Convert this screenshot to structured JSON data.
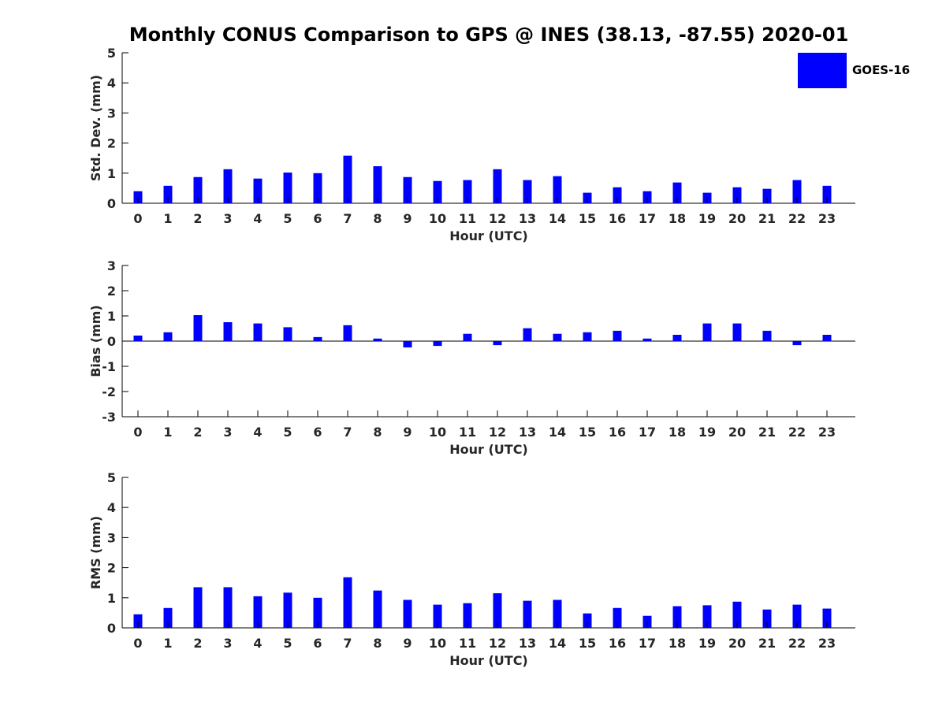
{
  "title": "Monthly CONUS Comparison to GPS @ INES (38.13, -87.55) 2020-01",
  "colors": {
    "bar": "#0000FF",
    "axis": "#000000",
    "text": "#262626"
  },
  "legend": {
    "position": "top-right",
    "label": "GOES-16"
  },
  "chart_data": [
    {
      "type": "bar",
      "series_name": "GOES-16",
      "categories": [
        "0",
        "1",
        "2",
        "3",
        "4",
        "5",
        "6",
        "7",
        "8",
        "9",
        "10",
        "11",
        "12",
        "13",
        "14",
        "15",
        "16",
        "17",
        "18",
        "19",
        "20",
        "21",
        "22",
        "23"
      ],
      "values": [
        0.4,
        0.58,
        0.87,
        1.13,
        0.82,
        1.02,
        1.0,
        1.58,
        1.23,
        0.87,
        0.74,
        0.77,
        1.13,
        0.77,
        0.9,
        0.35,
        0.53,
        0.4,
        0.69,
        0.35,
        0.53,
        0.48,
        0.77,
        0.58
      ],
      "xlabel": "Hour (UTC)",
      "ylabel": "Std. Dev. (mm)",
      "ylim": [
        0,
        5
      ],
      "yticks": [
        "0",
        "1",
        "2",
        "3",
        "4",
        "5"
      ],
      "grid": false
    },
    {
      "type": "bar",
      "series_name": "GOES-16",
      "categories": [
        "0",
        "1",
        "2",
        "3",
        "4",
        "5",
        "6",
        "7",
        "8",
        "9",
        "10",
        "11",
        "12",
        "13",
        "14",
        "15",
        "16",
        "17",
        "18",
        "19",
        "20",
        "21",
        "22",
        "23"
      ],
      "values": [
        0.22,
        0.35,
        1.03,
        0.75,
        0.7,
        0.55,
        0.16,
        0.63,
        0.1,
        -0.25,
        -0.19,
        0.29,
        -0.16,
        0.51,
        0.29,
        0.35,
        0.41,
        0.1,
        0.25,
        0.7,
        0.7,
        0.41,
        -0.16,
        0.25
      ],
      "xlabel": "Hour (UTC)",
      "ylabel": "Bias (mm)",
      "ylim": [
        -3,
        3
      ],
      "yticks": [
        "-3",
        "-2",
        "-1",
        "0",
        "1",
        "2",
        "3"
      ],
      "zero_line": true,
      "grid": false
    },
    {
      "type": "bar",
      "series_name": "GOES-16",
      "categories": [
        "0",
        "1",
        "2",
        "3",
        "4",
        "5",
        "6",
        "7",
        "8",
        "9",
        "10",
        "11",
        "12",
        "13",
        "14",
        "15",
        "16",
        "17",
        "18",
        "19",
        "20",
        "21",
        "22",
        "23"
      ],
      "values": [
        0.45,
        0.66,
        1.35,
        1.35,
        1.05,
        1.17,
        1.0,
        1.68,
        1.24,
        0.93,
        0.77,
        0.82,
        1.15,
        0.9,
        0.93,
        0.48,
        0.66,
        0.4,
        0.72,
        0.75,
        0.87,
        0.61,
        0.77,
        0.64
      ],
      "xlabel": "Hour (UTC)",
      "ylabel": "RMS (mm)",
      "ylim": [
        0,
        5
      ],
      "yticks": [
        "0",
        "1",
        "2",
        "3",
        "4",
        "5"
      ],
      "grid": false
    }
  ]
}
